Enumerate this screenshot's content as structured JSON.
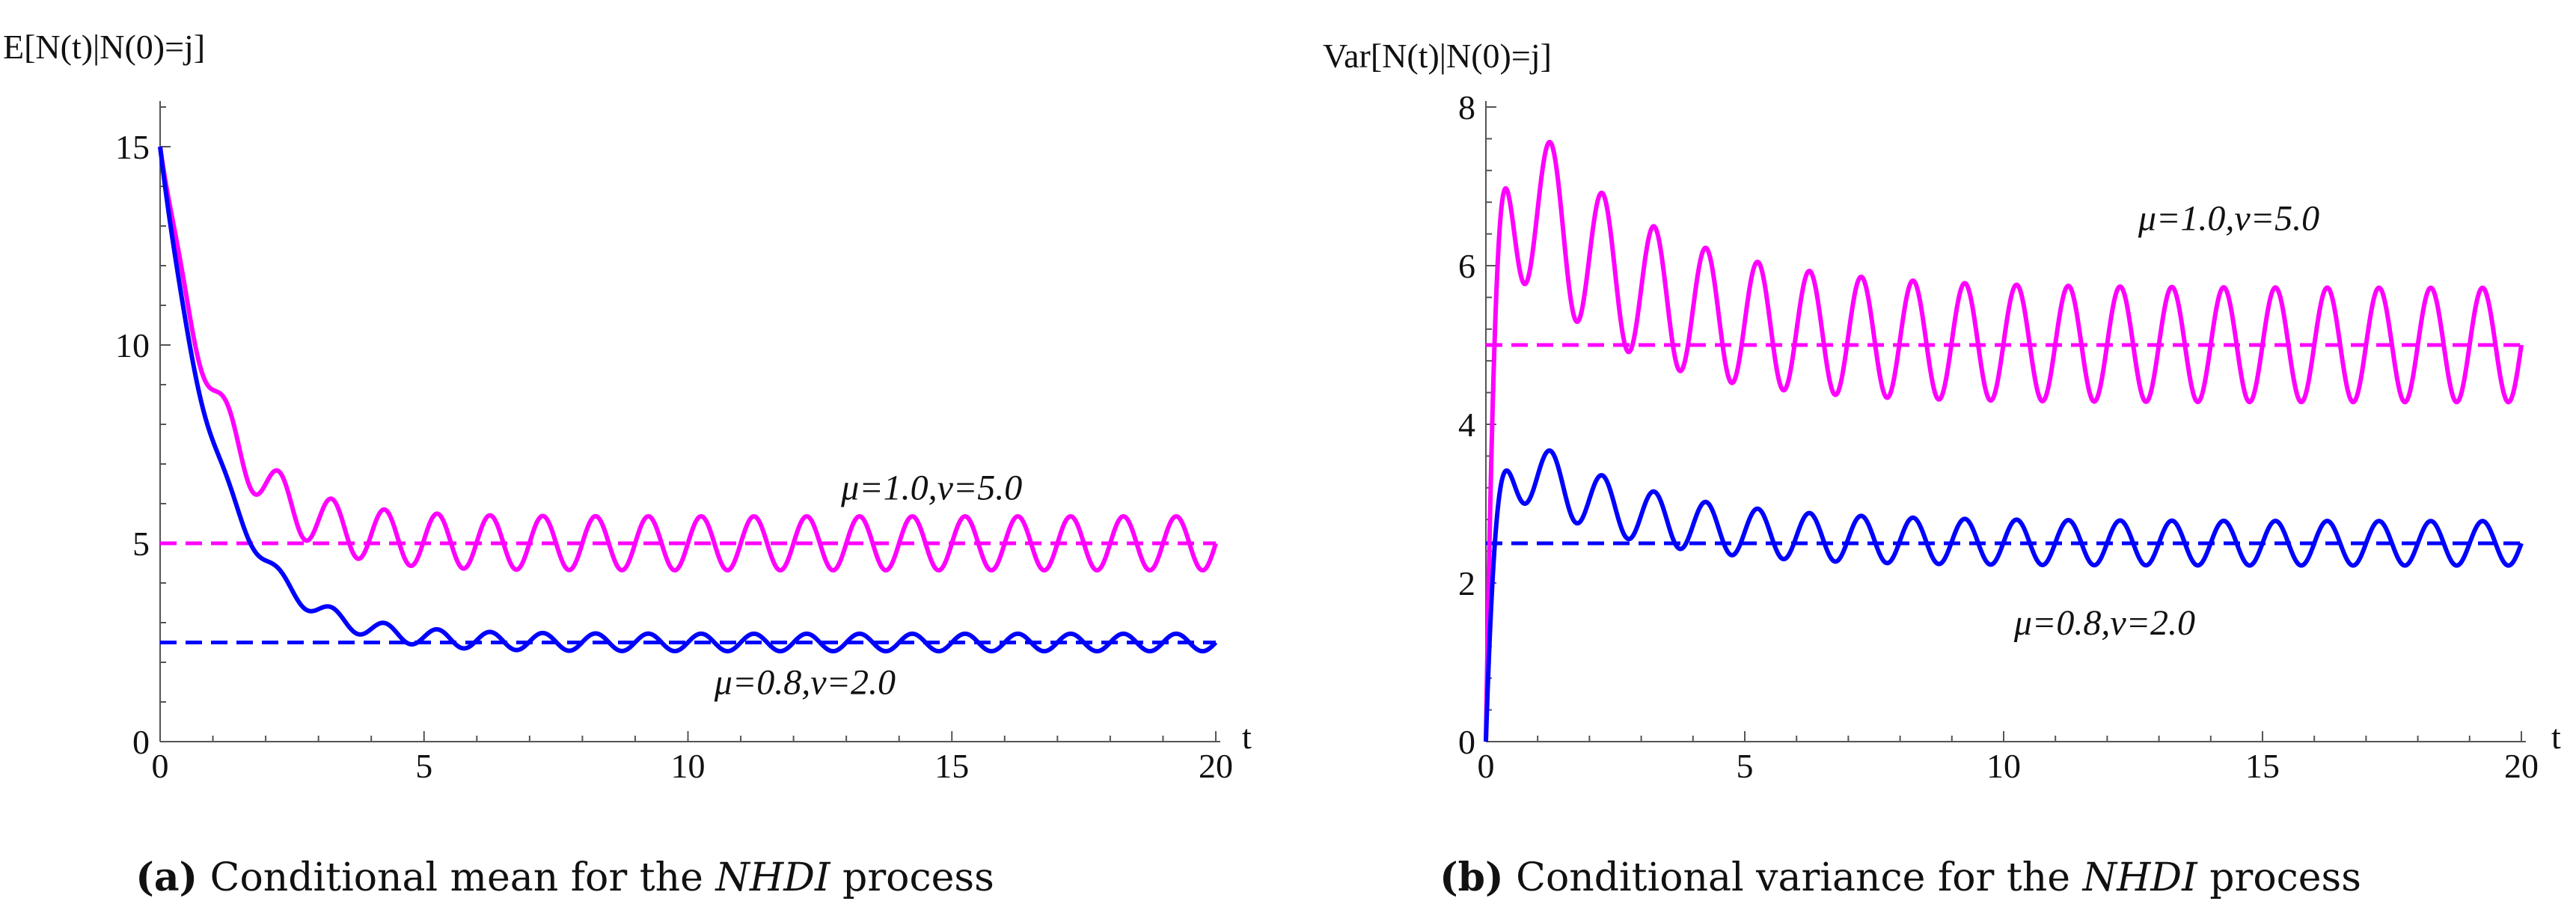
{
  "chart_data": [
    {
      "id": "a",
      "type": "line",
      "caption_tag": "(a)",
      "caption_pre": "Conditional mean for the ",
      "caption_ital": "NHDI",
      "caption_post": " process",
      "ylabel": "E[N(t)|N(0)=j]",
      "xlabel": "t",
      "xlim": [
        0,
        20
      ],
      "ylim": [
        0,
        16
      ],
      "xticks": [
        0,
        5,
        10,
        15,
        20
      ],
      "yticks": [
        0,
        5,
        10,
        15
      ],
      "series": [
        {
          "name": "μ=1.0,ν=5.0",
          "color": "#ff00ff",
          "kind": "mean",
          "start": 15,
          "mean": 5.0,
          "decay": 0.95,
          "amplitude": 0.68,
          "freq": 1.0,
          "phase": 0.0,
          "asymptote": 5.0
        },
        {
          "name": "μ=0.8,ν=2.0",
          "color": "#0000ff",
          "kind": "mean",
          "start": 15,
          "mean": 2.5,
          "decay": 0.9,
          "amplitude": 0.22,
          "freq": 1.0,
          "phase": 0.0,
          "asymptote": 2.5
        }
      ],
      "annotations": [
        {
          "text": "μ=1.0,ν=5.0",
          "x": 12.9,
          "y": 6.1
        },
        {
          "text": "μ=0.8,ν=2.0",
          "x": 10.5,
          "y": 1.2
        }
      ]
    },
    {
      "id": "b",
      "type": "line",
      "caption_tag": "(b)",
      "caption_pre": "Conditional variance for the ",
      "caption_ital": "NHDI",
      "caption_post": " process",
      "ylabel": "Var[N(t)|N(0)=j]",
      "xlabel": "t",
      "xlim": [
        0,
        20
      ],
      "ylim": [
        0,
        8
      ],
      "xticks": [
        0,
        5,
        10,
        15,
        20
      ],
      "yticks": [
        0,
        2,
        4,
        6,
        8
      ],
      "series": [
        {
          "name": "μ=1.0,ν=5.0",
          "color": "#ff00ff",
          "kind": "variance",
          "mean": 5.0,
          "rise": 6.0,
          "amplitude": 0.72,
          "freq": 1.0,
          "phase": 0.0,
          "asymptote": 5.0
        },
        {
          "name": "μ=0.8,ν=2.0",
          "color": "#0000ff",
          "kind": "variance",
          "mean": 2.5,
          "rise": 6.0,
          "amplitude": 0.28,
          "freq": 1.0,
          "phase": 0.0,
          "asymptote": 2.5
        }
      ],
      "annotations": [
        {
          "text": "μ=1.0,ν=5.0",
          "x": 12.6,
          "y": 6.45
        },
        {
          "text": "μ=0.8,ν=2.0",
          "x": 10.2,
          "y": 1.35
        }
      ]
    }
  ]
}
